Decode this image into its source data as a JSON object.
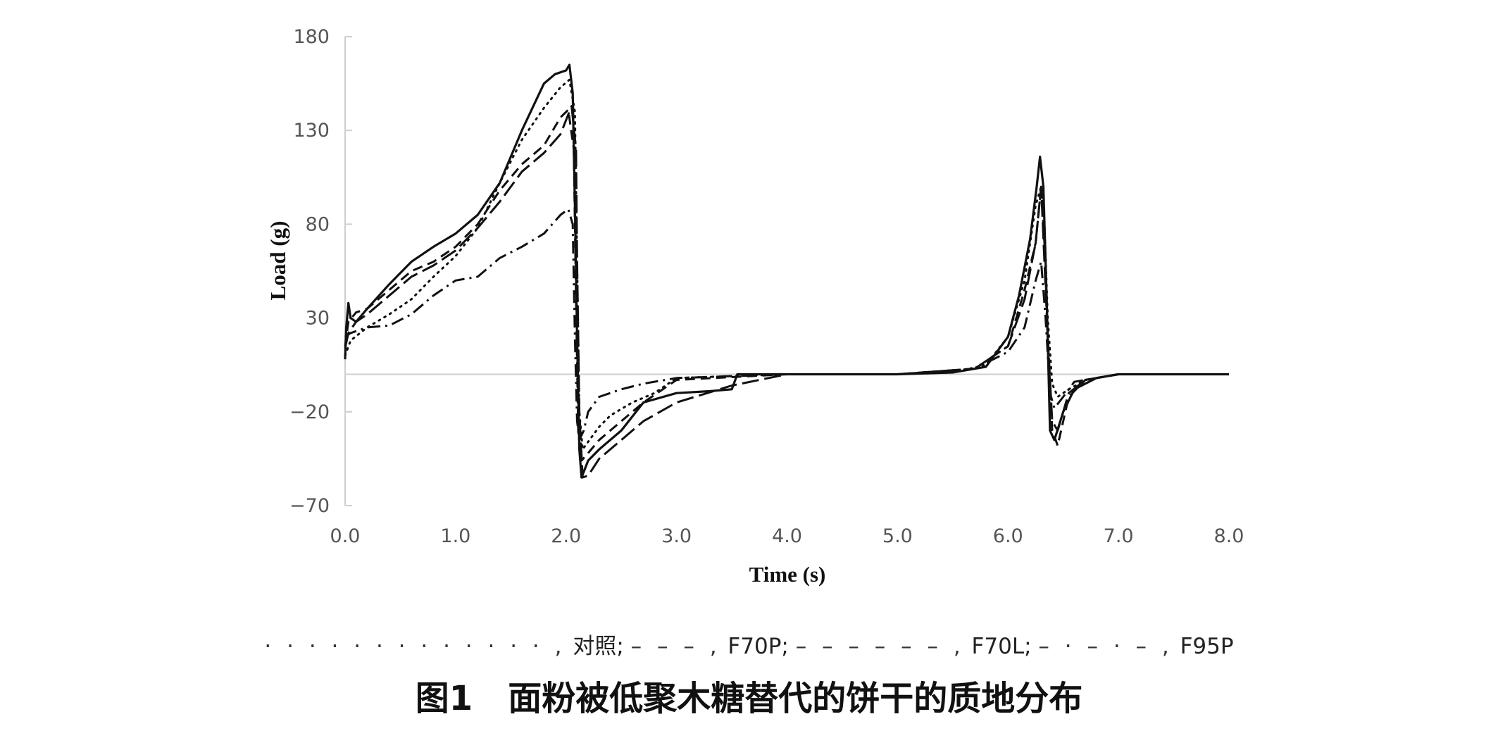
{
  "chart_data": {
    "type": "line",
    "xlabel": "Time (s)",
    "ylabel": "Load (g)",
    "xlim": [
      0,
      8
    ],
    "ylim": [
      -70,
      180
    ],
    "x_ticks": [
      "0.0",
      "1.0",
      "2.0",
      "3.0",
      "4.0",
      "5.0",
      "6.0",
      "7.0",
      "8.0"
    ],
    "y_ticks": [
      "180",
      "130",
      "80",
      "30",
      "−20",
      "−70"
    ],
    "zero_line": 0,
    "grid": false,
    "series": [
      {
        "name": "对照",
        "dash": "dotted",
        "x": [
          0.0,
          0.05,
          0.2,
          0.4,
          0.6,
          0.8,
          1.0,
          1.2,
          1.4,
          1.6,
          1.8,
          1.95,
          2.03,
          2.08,
          2.1,
          2.12,
          2.15,
          2.2,
          2.3,
          2.4,
          2.6,
          2.8,
          3.0,
          3.5,
          4.0,
          5.0,
          5.5,
          5.8,
          6.0,
          6.15,
          6.25,
          6.3,
          6.33,
          6.36,
          6.4,
          6.45,
          6.55,
          6.7,
          7.0,
          8.0
        ],
        "y": [
          10,
          18,
          25,
          32,
          40,
          52,
          63,
          78,
          102,
          125,
          142,
          153,
          157,
          140,
          60,
          -20,
          -40,
          -36,
          -28,
          -22,
          -15,
          -10,
          -2,
          -1,
          0,
          0,
          1,
          5,
          20,
          50,
          90,
          100,
          80,
          30,
          -5,
          -12,
          -8,
          -3,
          0,
          0
        ]
      },
      {
        "name": "F70P",
        "dash": "dash-short",
        "x": [
          0.0,
          0.03,
          0.1,
          0.2,
          0.4,
          0.6,
          0.8,
          1.0,
          1.2,
          1.4,
          1.6,
          1.8,
          1.95,
          2.02,
          2.07,
          2.09,
          2.11,
          2.14,
          2.2,
          2.3,
          2.5,
          2.7,
          3.0,
          4.0,
          5.0,
          5.7,
          6.0,
          6.15,
          6.25,
          6.3,
          6.33,
          6.36,
          6.4,
          6.45,
          6.55,
          6.7,
          7.0,
          8.0
        ],
        "y": [
          15,
          28,
          33,
          35,
          45,
          55,
          60,
          68,
          80,
          98,
          112,
          122,
          137,
          141,
          120,
          40,
          -30,
          -46,
          -42,
          -35,
          -25,
          -15,
          -3,
          0,
          0,
          3,
          15,
          45,
          70,
          100,
          70,
          20,
          -30,
          -38,
          -12,
          -3,
          0,
          0
        ]
      },
      {
        "name": "F70L",
        "dash": "dash-long",
        "x": [
          0.0,
          0.03,
          0.1,
          0.2,
          0.4,
          0.6,
          0.8,
          1.0,
          1.2,
          1.4,
          1.6,
          1.8,
          1.95,
          2.05,
          2.09,
          2.1,
          2.12,
          2.15,
          2.2,
          2.3,
          2.5,
          2.7,
          3.0,
          3.5,
          4.0,
          5.0,
          5.7,
          6.0,
          6.15,
          6.25,
          6.3,
          6.33,
          6.36,
          6.4,
          6.45,
          6.55,
          6.7,
          7.0,
          8.0
        ],
        "y": [
          14,
          22,
          28,
          32,
          42,
          52,
          58,
          66,
          78,
          92,
          108,
          118,
          128,
          143,
          120,
          60,
          -20,
          -55,
          -54,
          -45,
          -35,
          -25,
          -15,
          -6,
          0,
          0,
          3,
          15,
          40,
          70,
          100,
          60,
          20,
          -25,
          -30,
          -10,
          -3,
          0,
          0
        ]
      },
      {
        "name": "F95P",
        "dash": "dash-dot",
        "x": [
          0.0,
          0.05,
          0.2,
          0.4,
          0.6,
          0.8,
          1.0,
          1.2,
          1.4,
          1.6,
          1.8,
          1.95,
          2.02,
          2.06,
          2.08,
          2.1,
          2.12,
          2.16,
          2.2,
          2.3,
          2.5,
          2.7,
          3.0,
          4.0,
          5.0,
          5.7,
          6.0,
          6.15,
          6.25,
          6.3,
          6.34,
          6.38,
          6.42,
          6.5,
          6.6,
          7.0,
          8.0
        ],
        "y": [
          20,
          22,
          25,
          26,
          32,
          42,
          50,
          52,
          62,
          68,
          75,
          85,
          88,
          80,
          20,
          -25,
          -35,
          -30,
          -20,
          -12,
          -8,
          -5,
          -2,
          0,
          0,
          3,
          12,
          25,
          50,
          60,
          30,
          -10,
          -18,
          -12,
          -4,
          0,
          0
        ]
      },
      {
        "name": "",
        "dash": "solid",
        "x": [
          0.0,
          0.01,
          0.03,
          0.05,
          0.1,
          0.2,
          0.4,
          0.6,
          0.8,
          1.0,
          1.2,
          1.4,
          1.6,
          1.8,
          1.9,
          2.0,
          2.03,
          2.06,
          2.08,
          2.1,
          2.12,
          2.14,
          2.16,
          2.2,
          2.3,
          2.5,
          2.7,
          3.0,
          3.3,
          3.5,
          3.55,
          3.6,
          4.0,
          5.0,
          5.5,
          5.8,
          6.0,
          6.1,
          6.2,
          6.26,
          6.29,
          6.32,
          6.35,
          6.38,
          6.42,
          6.5,
          6.6,
          6.8,
          7.0,
          8.0
        ],
        "y": [
          8,
          25,
          38,
          30,
          28,
          35,
          48,
          60,
          68,
          75,
          85,
          102,
          130,
          155,
          160,
          162,
          165,
          150,
          90,
          20,
          -40,
          -55,
          -52,
          -46,
          -40,
          -30,
          -15,
          -10,
          -9,
          -8,
          0,
          0,
          0,
          0,
          1,
          4,
          20,
          42,
          72,
          100,
          116,
          100,
          40,
          -30,
          -35,
          -20,
          -8,
          -2,
          0,
          0
        ]
      }
    ]
  },
  "legend": {
    "entries": [
      {
        "symbol": "· · · · · · · · · · · · · ,",
        "label": " 对照;"
      },
      {
        "symbol": " – – – ,",
        "label": " F70P;"
      },
      {
        "symbol": "  – – – – – – ,",
        "label": " F70L;"
      },
      {
        "symbol": " – · – · – ,",
        "label": " F95P"
      }
    ]
  },
  "caption": {
    "number": "图1",
    "text": "面粉被低聚木糖替代的饼干的质地分布"
  }
}
